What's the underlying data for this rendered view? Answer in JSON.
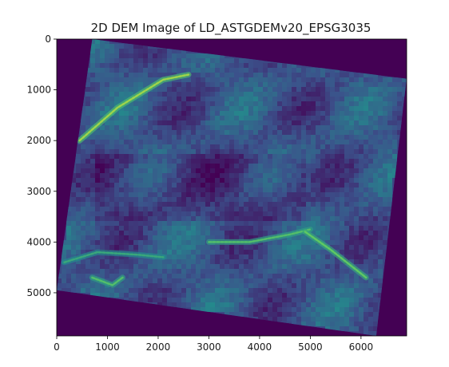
{
  "chart_data": {
    "type": "heatmap",
    "title": "2D DEM Image of LD_ASTGDEMv20_EPSG3035",
    "xlabel": "",
    "ylabel": "",
    "xlim": [
      0,
      6900
    ],
    "ylim": [
      5850,
      0
    ],
    "x_ticks": [
      {
        "value": 0,
        "label": "0"
      },
      {
        "value": 1000,
        "label": "1000"
      },
      {
        "value": 2000,
        "label": "2000"
      },
      {
        "value": 3000,
        "label": "3000"
      },
      {
        "value": 4000,
        "label": "4000"
      },
      {
        "value": 5000,
        "label": "5000"
      },
      {
        "value": 6000,
        "label": "6000"
      }
    ],
    "y_ticks": [
      {
        "value": 0,
        "label": "0"
      },
      {
        "value": 1000,
        "label": "1000"
      },
      {
        "value": 2000,
        "label": "2000"
      },
      {
        "value": 3000,
        "label": "3000"
      },
      {
        "value": 4000,
        "label": "4000"
      },
      {
        "value": 5000,
        "label": "5000"
      }
    ],
    "colormap": "viridis",
    "nodata_color": "#440154",
    "grid": false,
    "legend": "none",
    "valid_data_footprint": [
      [
        700,
        0
      ],
      [
        6900,
        780
      ],
      [
        6300,
        5850
      ],
      [
        0,
        4950
      ]
    ],
    "ridges": [
      {
        "points": [
          [
            450,
            2000
          ],
          [
            1200,
            1350
          ],
          [
            2100,
            800
          ],
          [
            2600,
            700
          ]
        ],
        "intensity": 0.85
      },
      {
        "points": [
          [
            3000,
            4000
          ],
          [
            3800,
            4000
          ],
          [
            4600,
            3850
          ],
          [
            5000,
            3750
          ]
        ],
        "intensity": 0.7
      },
      {
        "points": [
          [
            4900,
            3800
          ],
          [
            5400,
            4150
          ],
          [
            6100,
            4700
          ]
        ],
        "intensity": 0.75
      },
      {
        "points": [
          [
            150,
            4400
          ],
          [
            800,
            4200
          ],
          [
            1600,
            4250
          ],
          [
            2100,
            4300
          ]
        ],
        "intensity": 0.6
      },
      {
        "points": [
          [
            700,
            4700
          ],
          [
            1100,
            4850
          ],
          [
            1300,
            4700
          ]
        ],
        "intensity": 0.7
      }
    ]
  }
}
